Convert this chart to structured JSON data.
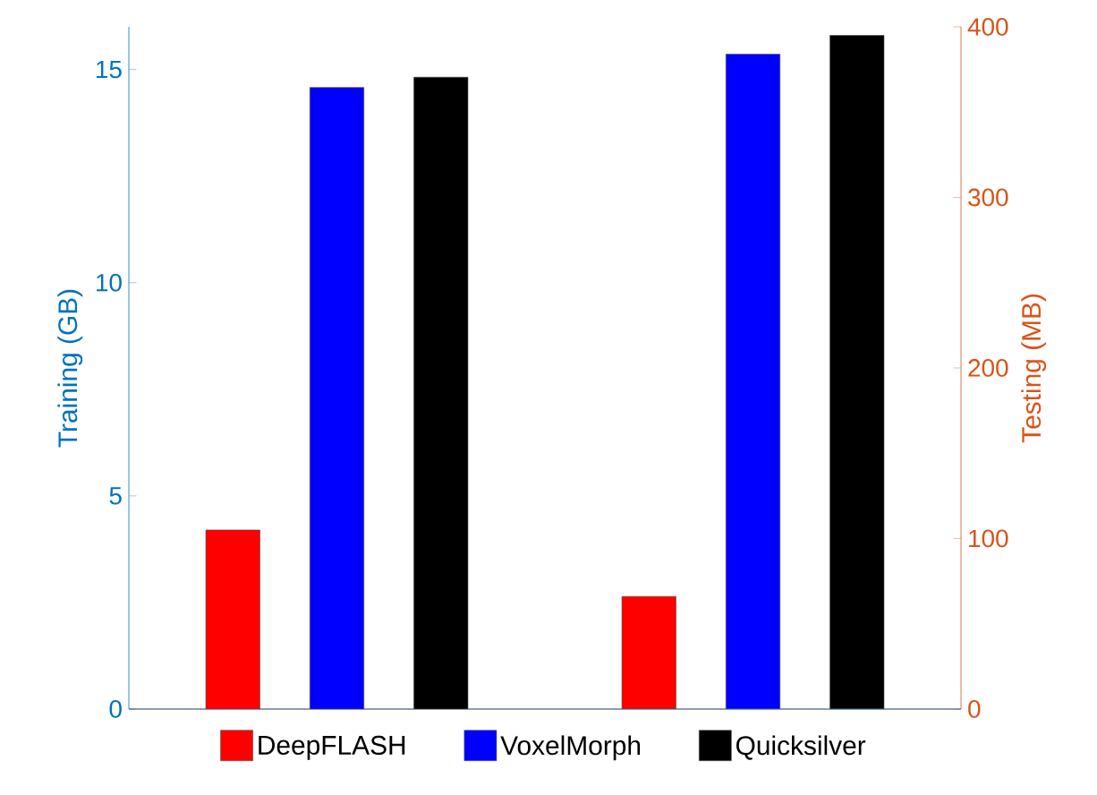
{
  "chart_data": {
    "type": "bar",
    "categories": [
      null,
      null
    ],
    "ylabel": "Training (GB)",
    "y2label": "Testing (MB)",
    "ylim": [
      0,
      16
    ],
    "yticks": [
      0,
      5,
      10,
      15
    ],
    "y2lim": [
      0,
      400
    ],
    "y2ticks": [
      0,
      100,
      200,
      300,
      400
    ],
    "legend": "bottom",
    "series": [
      {
        "name": "DeepFLASH",
        "color": "#ff0000",
        "values": [
          4.2,
          null
        ]
      },
      {
        "name": "VoxelMorph",
        "color": "#0000ff",
        "values": [
          14.58,
          null
        ]
      },
      {
        "name": "Quicksilver",
        "color": "#000000",
        "values": [
          14.82,
          null
        ]
      },
      {
        "color": "#ff0000",
        "values": [
          null,
          66
        ],
        "axis": "y2"
      },
      {
        "color": "#0000ff",
        "values": [
          null,
          384
        ],
        "axis": "y2"
      },
      {
        "color": "#000000",
        "values": [
          null,
          395
        ],
        "axis": "y2"
      }
    ]
  }
}
